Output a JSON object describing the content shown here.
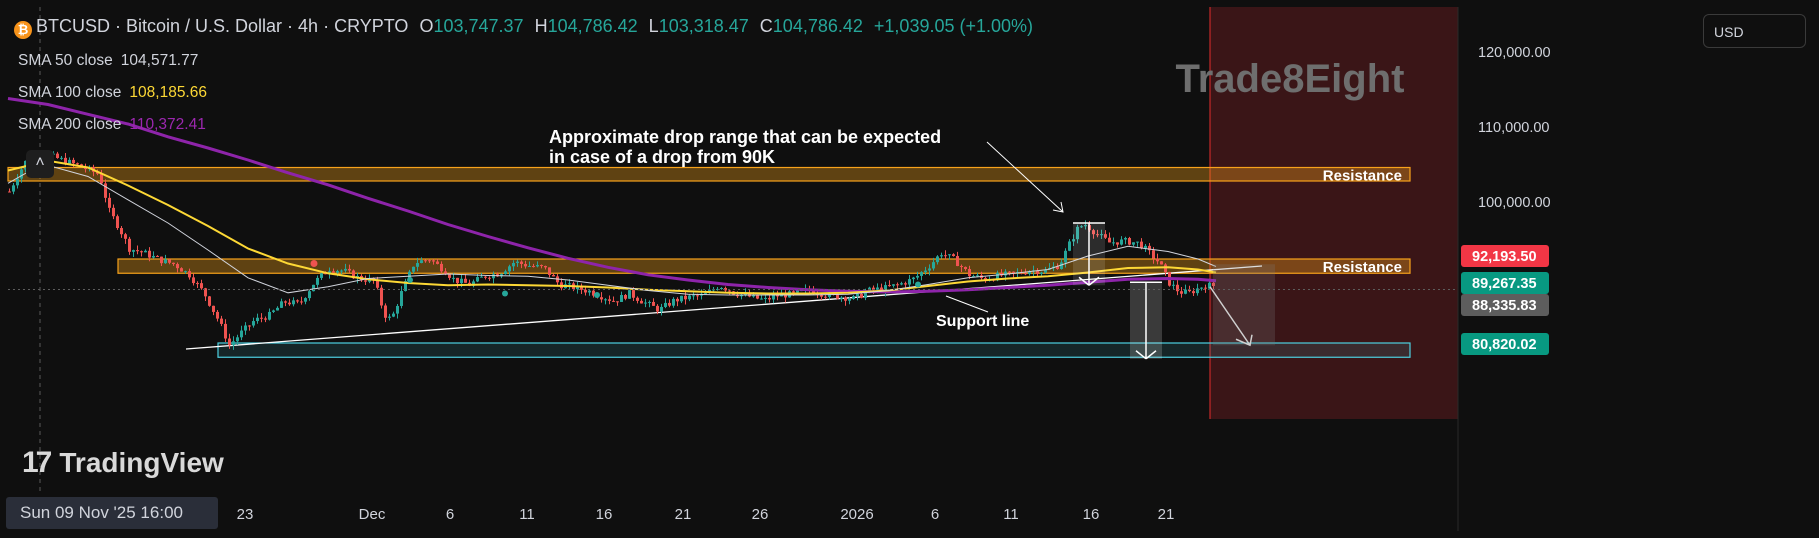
{
  "header": {
    "symbol": "BTCUSD · Bitcoin / U.S. Dollar · 4h · CRYPTO",
    "open_label": "O",
    "open": "103,747.37",
    "high_label": "H",
    "high": "104,786.42",
    "low_label": "L",
    "low": "103,318.47",
    "close_label": "C",
    "close": "104,786.42",
    "change": "+1,039.05 (+1.00%)"
  },
  "indicators": [
    {
      "label": "SMA 50 close",
      "value": "104,571.77",
      "color": "#d1d4dc"
    },
    {
      "label": "SMA 100 close",
      "value": "108,185.66",
      "color": "#fdd835"
    },
    {
      "label": "SMA 200 close",
      "value": "110,372.41",
      "color": "#9c27b0"
    }
  ],
  "currency": "USD",
  "watermark": "Trade8Eight",
  "logo_text": "TradingView",
  "time_badge": "Sun 09 Nov '25   16:00",
  "collapse_icon": "chevron-up-icon",
  "colors": {
    "background": "#0f0f0f",
    "up": "#26a69a",
    "down": "#ef5350",
    "resistance": "#f7a21b",
    "support_zone": "#4dd0e1",
    "sma50": "#d1d4dc",
    "sma100": "#fdd835",
    "sma200": "#8e24aa",
    "future_zone": "#3a1517"
  },
  "chart_data": {
    "type": "candlestick",
    "title": "",
    "y_axis_ticks": [
      120000,
      110000,
      100000
    ],
    "y_axis_tick_labels": [
      "120,000.00",
      "110,000.00",
      "100,000.00"
    ],
    "ylim": [
      77500,
      126500
    ],
    "x_axis_labels": [
      "23",
      "Dec",
      "6",
      "11",
      "16",
      "21",
      "26",
      "2026",
      "6",
      "11",
      "16",
      "21"
    ],
    "price_labels": [
      {
        "value": "92,193.50",
        "color": "#f23645",
        "price": 92193.5
      },
      {
        "value": "89,267.35",
        "color": "#089981",
        "price": 89267.35
      },
      {
        "value": "88,335.83",
        "color": "#5d5d5d",
        "price": 88335.83
      },
      {
        "value": "80,820.02",
        "color": "#089981",
        "price": 80820.02
      }
    ],
    "zones": [
      {
        "name": "Resistance",
        "label": "Resistance",
        "low": 102800,
        "high": 104600
      },
      {
        "name": "Resistance",
        "label": "Resistance",
        "low": 90500,
        "high": 92400
      },
      {
        "name": "Support zone",
        "label": "",
        "low": 79300,
        "high": 81200
      }
    ],
    "annotations": [
      {
        "text_line1": "Approximate drop range that can be expected",
        "text_line2": "in case of a drop from 90K"
      },
      {
        "text": "Support line"
      }
    ],
    "price_path": [
      [
        0,
        101400
      ],
      [
        8,
        103500
      ],
      [
        18,
        105800
      ],
      [
        28,
        104900
      ],
      [
        40,
        106200
      ],
      [
        55,
        105500
      ],
      [
        70,
        104800
      ],
      [
        90,
        103700
      ],
      [
        100,
        98800
      ],
      [
        110,
        96500
      ],
      [
        120,
        93800
      ],
      [
        135,
        93200
      ],
      [
        150,
        92300
      ],
      [
        165,
        91700
      ],
      [
        180,
        90300
      ],
      [
        195,
        87800
      ],
      [
        210,
        84000
      ],
      [
        220,
        80900
      ],
      [
        232,
        82600
      ],
      [
        245,
        84200
      ],
      [
        260,
        84900
      ],
      [
        275,
        86700
      ],
      [
        290,
        86400
      ],
      [
        305,
        89300
      ],
      [
        320,
        91100
      ],
      [
        335,
        90800
      ],
      [
        350,
        89800
      ],
      [
        365,
        89500
      ],
      [
        375,
        85000
      ],
      [
        382,
        84300
      ],
      [
        392,
        87900
      ],
      [
        405,
        91900
      ],
      [
        420,
        92400
      ],
      [
        435,
        90900
      ],
      [
        445,
        89600
      ],
      [
        460,
        89000
      ],
      [
        475,
        90100
      ],
      [
        490,
        90500
      ],
      [
        505,
        92000
      ],
      [
        520,
        91500
      ],
      [
        535,
        91200
      ],
      [
        550,
        89000
      ],
      [
        565,
        88600
      ],
      [
        580,
        88100
      ],
      [
        595,
        87300
      ],
      [
        605,
        86800
      ],
      [
        620,
        87800
      ],
      [
        635,
        86600
      ],
      [
        650,
        85600
      ],
      [
        665,
        86900
      ],
      [
        680,
        87300
      ],
      [
        695,
        87600
      ],
      [
        710,
        88900
      ],
      [
        725,
        87900
      ],
      [
        740,
        87400
      ],
      [
        755,
        86900
      ],
      [
        770,
        87600
      ],
      [
        785,
        87700
      ],
      [
        800,
        88300
      ],
      [
        815,
        87700
      ],
      [
        830,
        87400
      ],
      [
        845,
        87100
      ],
      [
        860,
        88200
      ],
      [
        875,
        88500
      ],
      [
        890,
        89000
      ],
      [
        905,
        89800
      ],
      [
        920,
        91500
      ],
      [
        932,
        93200
      ],
      [
        945,
        92300
      ],
      [
        960,
        90300
      ],
      [
        975,
        89700
      ],
      [
        990,
        90200
      ],
      [
        1005,
        90400
      ],
      [
        1020,
        90900
      ],
      [
        1035,
        90800
      ],
      [
        1050,
        91600
      ],
      [
        1060,
        94400
      ],
      [
        1068,
        96400
      ],
      [
        1075,
        97100
      ],
      [
        1090,
        95500
      ],
      [
        1100,
        94600
      ],
      [
        1115,
        94800
      ],
      [
        1130,
        94500
      ],
      [
        1140,
        93200
      ],
      [
        1150,
        91900
      ],
      [
        1160,
        89200
      ],
      [
        1170,
        88000
      ],
      [
        1180,
        87900
      ],
      [
        1195,
        88900
      ],
      [
        1208,
        88800
      ]
    ],
    "sma50": [
      [
        0,
        102500
      ],
      [
        20,
        104000
      ],
      [
        45,
        104700
      ],
      [
        80,
        103400
      ],
      [
        120,
        100300
      ],
      [
        160,
        97200
      ],
      [
        200,
        93600
      ],
      [
        240,
        89900
      ],
      [
        280,
        87900
      ],
      [
        320,
        88700
      ],
      [
        360,
        89800
      ],
      [
        400,
        90100
      ],
      [
        440,
        90400
      ],
      [
        480,
        90200
      ],
      [
        520,
        90100
      ],
      [
        560,
        89600
      ],
      [
        600,
        88900
      ],
      [
        640,
        88200
      ],
      [
        680,
        87700
      ],
      [
        720,
        87600
      ],
      [
        760,
        87600
      ],
      [
        800,
        87600
      ],
      [
        840,
        87700
      ],
      [
        880,
        88200
      ],
      [
        920,
        89000
      ],
      [
        960,
        89900
      ],
      [
        1000,
        90400
      ],
      [
        1040,
        91000
      ],
      [
        1080,
        92800
      ],
      [
        1120,
        94100
      ],
      [
        1160,
        93400
      ],
      [
        1190,
        92400
      ],
      [
        1208,
        91400
      ]
    ],
    "sma100": [
      [
        0,
        104200
      ],
      [
        40,
        105500
      ],
      [
        80,
        104600
      ],
      [
        120,
        102200
      ],
      [
        160,
        99600
      ],
      [
        200,
        96800
      ],
      [
        240,
        93800
      ],
      [
        280,
        91800
      ],
      [
        320,
        90500
      ],
      [
        360,
        89700
      ],
      [
        400,
        89200
      ],
      [
        440,
        88900
      ],
      [
        480,
        89000
      ],
      [
        520,
        88900
      ],
      [
        560,
        88800
      ],
      [
        600,
        88600
      ],
      [
        640,
        88300
      ],
      [
        680,
        88100
      ],
      [
        720,
        87900
      ],
      [
        760,
        87800
      ],
      [
        800,
        87800
      ],
      [
        840,
        87900
      ],
      [
        880,
        88200
      ],
      [
        920,
        88800
      ],
      [
        960,
        89400
      ],
      [
        1000,
        89800
      ],
      [
        1040,
        90100
      ],
      [
        1080,
        90600
      ],
      [
        1120,
        91200
      ],
      [
        1160,
        91300
      ],
      [
        1190,
        91000
      ],
      [
        1208,
        90600
      ]
    ],
    "sma200": [
      [
        0,
        113800
      ],
      [
        40,
        113000
      ],
      [
        80,
        111700
      ],
      [
        120,
        110400
      ],
      [
        160,
        108700
      ],
      [
        200,
        107200
      ],
      [
        240,
        105600
      ],
      [
        280,
        103900
      ],
      [
        320,
        102300
      ],
      [
        360,
        100500
      ],
      [
        400,
        98800
      ],
      [
        440,
        97000
      ],
      [
        480,
        95400
      ],
      [
        520,
        93900
      ],
      [
        560,
        92500
      ],
      [
        600,
        91300
      ],
      [
        640,
        90300
      ],
      [
        680,
        89600
      ],
      [
        720,
        89000
      ],
      [
        760,
        88600
      ],
      [
        800,
        88300
      ],
      [
        840,
        88100
      ],
      [
        880,
        88000
      ],
      [
        920,
        88100
      ],
      [
        960,
        88300
      ],
      [
        1000,
        88600
      ],
      [
        1040,
        88900
      ],
      [
        1080,
        89300
      ],
      [
        1120,
        89700
      ],
      [
        1160,
        89800
      ],
      [
        1190,
        89700
      ],
      [
        1208,
        89500
      ]
    ]
  }
}
